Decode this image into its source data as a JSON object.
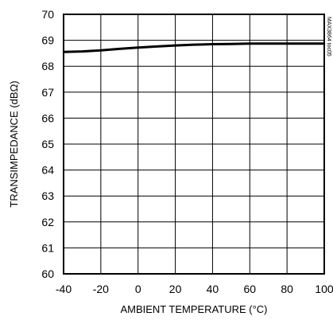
{
  "chart_data": {
    "type": "line",
    "xlabel": "AMBIENT TEMPERATURE (°C)",
    "ylabel": "TRANSIMPEDANCE (dBΩ)",
    "xlim": [
      -40,
      100
    ],
    "ylim": [
      60,
      70
    ],
    "x_ticks": [
      -40,
      -20,
      0,
      20,
      40,
      60,
      80,
      100
    ],
    "y_ticks": [
      60,
      61,
      62,
      63,
      64,
      65,
      66,
      67,
      68,
      69,
      70
    ],
    "grid": true,
    "series": [
      {
        "color": "#000000",
        "x": [
          -40,
          -30,
          -20,
          -10,
          0,
          10,
          20,
          30,
          40,
          50,
          60,
          70,
          80,
          90,
          100
        ],
        "y": [
          68.55,
          68.57,
          68.61,
          68.67,
          68.72,
          68.76,
          68.8,
          68.83,
          68.85,
          68.86,
          68.87,
          68.87,
          68.87,
          68.87,
          68.87
        ]
      }
    ],
    "annotations": [
      {
        "text": "MAX3864 toc05"
      }
    ]
  }
}
